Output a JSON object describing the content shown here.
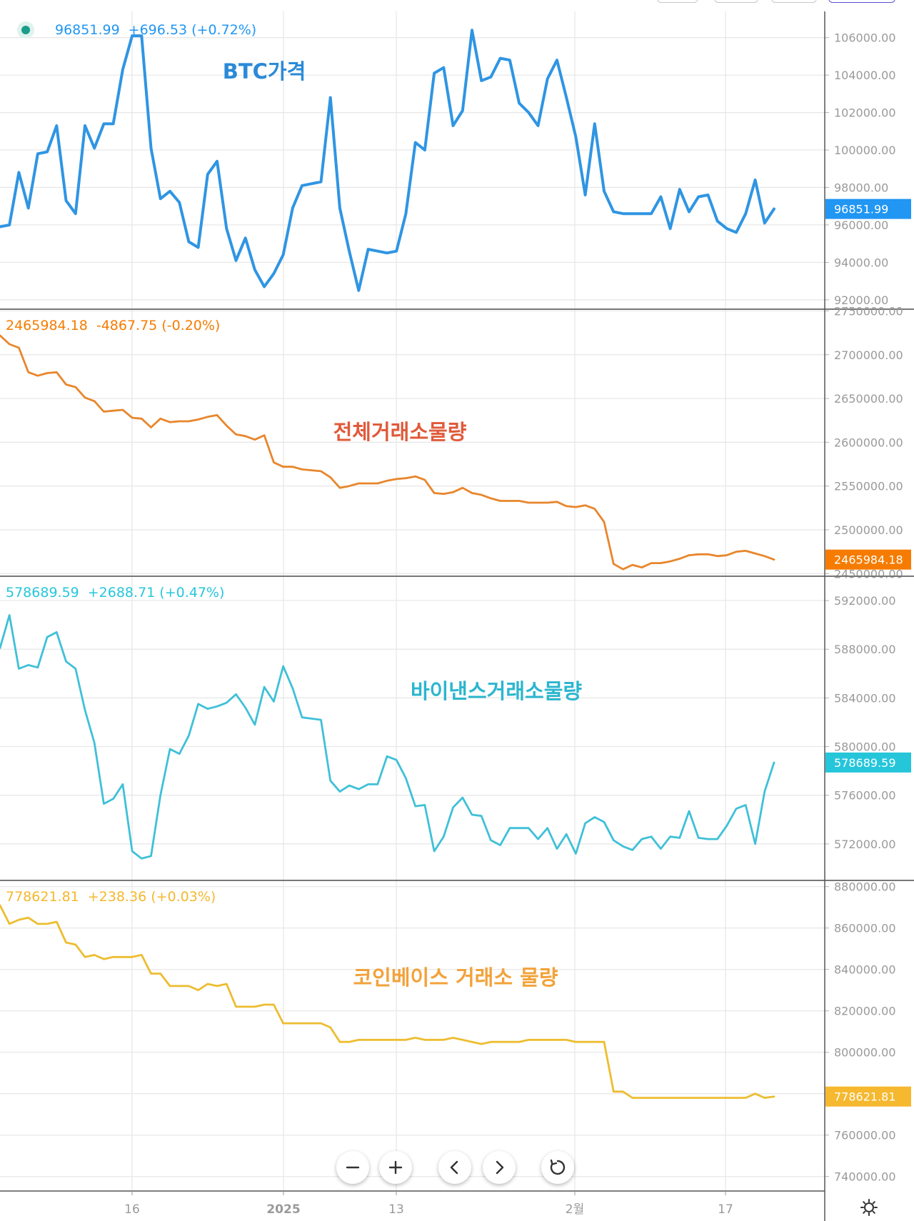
{
  "controls": [
    {
      "icon": "minus-icon"
    },
    {
      "icon": "plus-icon"
    },
    {
      "icon": "chevron-left-icon"
    },
    {
      "icon": "chevron-right-icon"
    },
    {
      "icon": "reset-icon"
    }
  ],
  "settings_icon": "gear-icon",
  "chart_data": {
    "type": "line",
    "grid": true,
    "x_axis": {
      "tick_labels": [
        "16",
        "2025",
        "13",
        "2월",
        "17"
      ]
    },
    "panels": [
      {
        "id": "btc",
        "title": "BTC가격",
        "title_color": "#2a8ad8",
        "line_color": "#2f95e3",
        "legend_dot_color": "#1a9c8a",
        "header": {
          "value": "96851.99",
          "change": "+696.53 (+0.72%)"
        },
        "last_label": "96851.99",
        "label_color": "#2196f3",
        "ylim": [
          91500,
          107400
        ],
        "y_ticks": [
          106000,
          104000,
          102000,
          100000,
          98000,
          96000,
          94000,
          92000
        ],
        "y_tick_labels": [
          "106000.00",
          "104000.00",
          "102000.00",
          "100000.00",
          "98000.00",
          "96000.00",
          "94000.00",
          "92000.00"
        ],
        "values": [
          95900,
          96000,
          98800,
          96900,
          99800,
          99900,
          101300,
          97300,
          96600,
          101300,
          100100,
          101400,
          101400,
          104300,
          106100,
          106100,
          100100,
          97400,
          97800,
          97200,
          95100,
          94800,
          98700,
          99400,
          95800,
          94100,
          95300,
          93600,
          92700,
          93400,
          94400,
          96900,
          98100,
          98200,
          98300,
          102800,
          96900,
          94600,
          92500,
          94700,
          94600,
          94500,
          94600,
          96600,
          100400,
          100000,
          104100,
          104400,
          101300,
          102100,
          106400,
          103700,
          103900,
          104900,
          104800,
          102500,
          102000,
          101300,
          103800,
          104800,
          102800,
          100700,
          97600,
          101400,
          97800,
          96700,
          96600,
          96600,
          96600,
          96600,
          97500,
          95800,
          97900,
          96700,
          97500,
          97600,
          96200,
          95800,
          95600,
          96600,
          98400,
          96100,
          96852
        ]
      },
      {
        "id": "total",
        "title": "전체거래소물량",
        "title_color": "#e05a3a",
        "line_color": "#e8862c",
        "legend_dot_color": "",
        "header": {
          "value": "2465984.18",
          "change": "-4867.75 (-0.20%)"
        },
        "last_label": "2465984.18",
        "label_color": "#f57c00",
        "ylim": [
          2447000,
          2752000
        ],
        "y_ticks": [
          2750000,
          2700000,
          2650000,
          2600000,
          2550000,
          2500000,
          2450000
        ],
        "y_tick_labels": [
          "2750000.00",
          "2700000.00",
          "2650000.00",
          "2600000.00",
          "2550000.00",
          "2500000.00",
          "2450000.00"
        ],
        "values": [
          2722000,
          2712000,
          2708000,
          2680000,
          2676000,
          2679000,
          2680000,
          2666000,
          2663000,
          2651000,
          2647000,
          2635000,
          2636000,
          2637000,
          2628000,
          2627000,
          2617000,
          2627000,
          2623000,
          2624000,
          2624000,
          2626000,
          2629000,
          2631000,
          2619000,
          2609000,
          2607000,
          2603000,
          2608000,
          2577000,
          2572000,
          2572000,
          2569000,
          2568000,
          2567000,
          2560000,
          2548000,
          2550000,
          2553000,
          2553000,
          2553000,
          2556000,
          2558000,
          2559000,
          2561000,
          2557000,
          2542000,
          2541000,
          2543000,
          2548000,
          2542000,
          2540000,
          2536000,
          2533000,
          2533000,
          2533000,
          2531000,
          2531000,
          2531000,
          2532000,
          2527000,
          2526000,
          2528000,
          2524000,
          2509000,
          2461000,
          2455000,
          2460000,
          2457000,
          2462000,
          2462000,
          2464000,
          2467000,
          2471000,
          2472000,
          2472000,
          2470000,
          2471000,
          2475000,
          2476000,
          2473000,
          2470000,
          2466000
        ]
      },
      {
        "id": "binance",
        "title": "바이낸스거래소물량",
        "title_color": "#2bb6cf",
        "line_color": "#3fc0d8",
        "legend_dot_color": "",
        "header": {
          "value": "578689.59",
          "change": "+2688.71 (+0.47%)"
        },
        "last_label": "578689.59",
        "label_color": "#26c6da",
        "ylim": [
          569000,
          594000
        ],
        "y_ticks": [
          592000,
          588000,
          584000,
          580000,
          576000,
          572000
        ],
        "y_tick_labels": [
          "592000.00",
          "588000.00",
          "584000.00",
          "580000.00",
          "576000.00",
          "572000.00"
        ],
        "values": [
          588100,
          590800,
          586400,
          586700,
          586500,
          589000,
          589400,
          587000,
          586400,
          583000,
          580300,
          575300,
          575700,
          576900,
          571400,
          570800,
          571000,
          576000,
          579800,
          579400,
          580900,
          583500,
          583100,
          583300,
          583600,
          584300,
          583200,
          581800,
          584900,
          583700,
          586600,
          584800,
          582400,
          582300,
          582200,
          577200,
          576300,
          576800,
          576500,
          576900,
          576900,
          579200,
          578900,
          577400,
          575100,
          575200,
          571400,
          572600,
          575000,
          575800,
          574400,
          574300,
          572300,
          571900,
          573300,
          573300,
          573300,
          572400,
          573300,
          571600,
          572800,
          571200,
          573700,
          574200,
          573800,
          572300,
          571800,
          571500,
          572400,
          572600,
          571600,
          572600,
          572500,
          574700,
          572500,
          572400,
          572400,
          573500,
          574900,
          575200,
          572000,
          576300,
          578690
        ]
      },
      {
        "id": "coinbase",
        "title": "코인베이스 거래소 물량",
        "title_color": "#f2a23a",
        "line_color": "#edbd30",
        "legend_dot_color": "",
        "header": {
          "value": "778621.81",
          "change": "+238.36 (+0.03%)"
        },
        "last_label": "778621.81",
        "label_color": "#f5b82e",
        "ylim": [
          733000,
          883000
        ],
        "y_ticks": [
          880000,
          860000,
          840000,
          820000,
          800000,
          780000,
          760000,
          740000
        ],
        "y_tick_labels": [
          "880000.00",
          "860000.00",
          "840000.00",
          "820000.00",
          "800000.00",
          "780000.00",
          "760000.00",
          "740000.00"
        ],
        "values": [
          871000,
          862000,
          864000,
          865000,
          862000,
          862000,
          863000,
          853000,
          852000,
          846000,
          847000,
          845000,
          846000,
          846000,
          846000,
          847000,
          838000,
          838000,
          832000,
          832000,
          832000,
          830000,
          833000,
          832000,
          833000,
          822000,
          822000,
          822000,
          823000,
          823000,
          814000,
          814000,
          814000,
          814000,
          814000,
          812000,
          805000,
          805000,
          806000,
          806000,
          806000,
          806000,
          806000,
          806000,
          807000,
          806000,
          806000,
          806000,
          807000,
          806000,
          805000,
          804000,
          805000,
          805000,
          805000,
          805000,
          806000,
          806000,
          806000,
          806000,
          806000,
          805000,
          805000,
          805000,
          805000,
          781000,
          781000,
          778000,
          778000,
          778000,
          778000,
          778000,
          778000,
          778000,
          778000,
          778000,
          778000,
          778000,
          778000,
          778000,
          780000,
          778000,
          778622
        ]
      }
    ]
  }
}
